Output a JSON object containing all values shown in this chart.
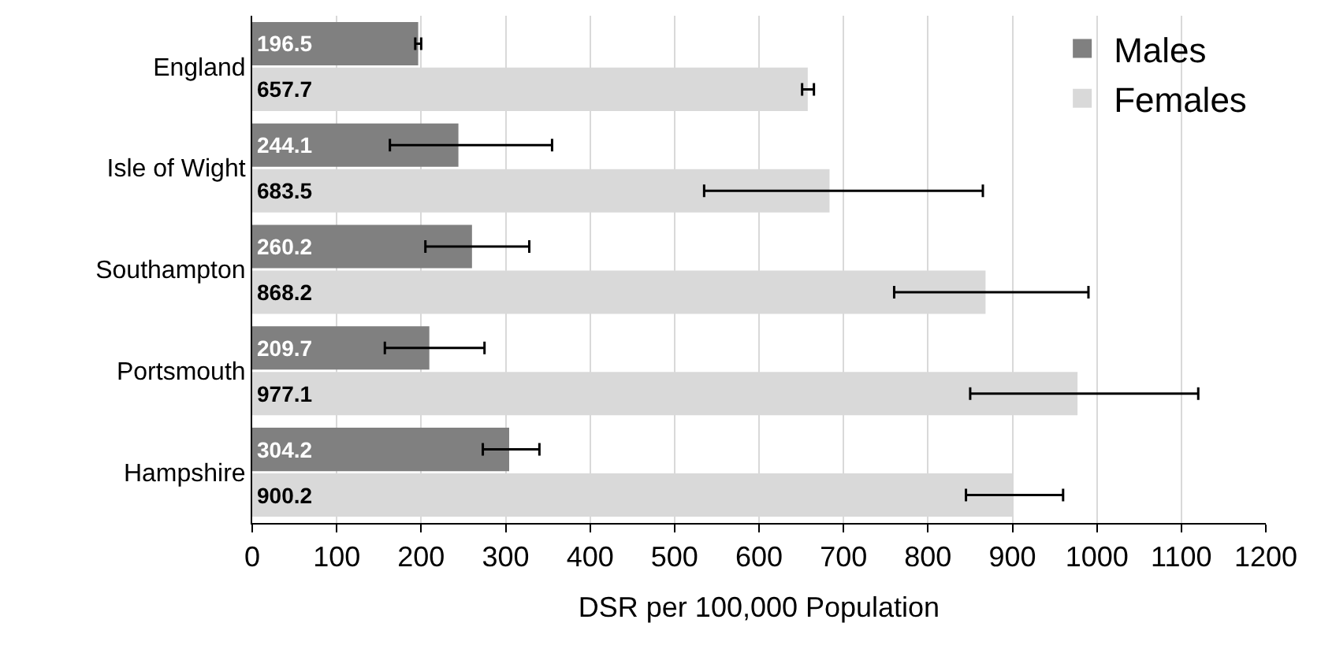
{
  "chart_data": {
    "type": "bar",
    "orientation": "horizontal",
    "xlabel": "DSR per 100,000 Population",
    "categories": [
      "England",
      "Isle of Wight",
      "Southampton",
      "Portsmouth",
      "Hampshire"
    ],
    "series": [
      {
        "name": "Males",
        "color": "#808080",
        "values": [
          196.5,
          244.1,
          260.2,
          209.7,
          304.2
        ],
        "errors": [
          [
            193,
            200
          ],
          [
            163,
            355
          ],
          [
            205,
            328
          ],
          [
            157,
            275
          ],
          [
            273,
            340
          ]
        ]
      },
      {
        "name": "Females",
        "color": "#d9d9d9",
        "values": [
          657.7,
          683.5,
          868.2,
          977.1,
          900.2
        ],
        "errors": [
          [
            651,
            665
          ],
          [
            535,
            865
          ],
          [
            760,
            990
          ],
          [
            850,
            1120
          ],
          [
            845,
            960
          ]
        ]
      }
    ],
    "xlim": [
      0,
      1200
    ],
    "xticks": [
      0,
      100,
      200,
      300,
      400,
      500,
      600,
      700,
      800,
      900,
      1000,
      1100,
      1200
    ],
    "grid": "x",
    "legend": "top right",
    "data_labels": true
  }
}
